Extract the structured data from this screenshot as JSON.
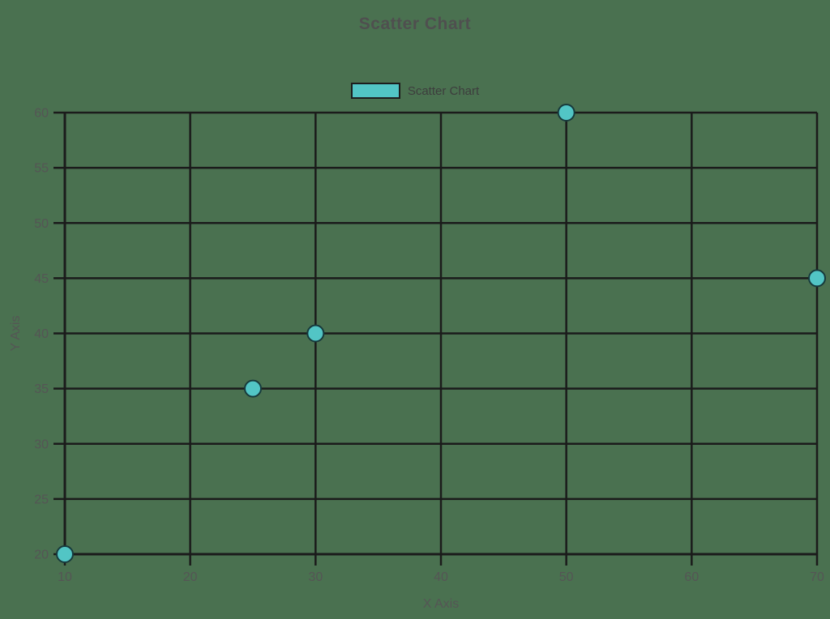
{
  "page": {
    "background_color": "#4A7150"
  },
  "chart_data": {
    "type": "scatter",
    "title": "Scatter Chart",
    "xlabel": "X Axis",
    "ylabel": "Y Axis",
    "xlim": [
      10,
      70
    ],
    "ylim": [
      20,
      60
    ],
    "x_ticks": [
      "10",
      "20",
      "30",
      "40",
      "50",
      "60",
      "70"
    ],
    "y_ticks": [
      "20",
      "25",
      "30",
      "35",
      "40",
      "45",
      "50",
      "55",
      "60"
    ],
    "grid": true,
    "legend_position": "top-center",
    "legend": [
      {
        "label": "Scatter Chart",
        "color": "#52C5C5"
      }
    ],
    "series": [
      {
        "name": "Scatter Chart",
        "points": [
          {
            "x": 10,
            "y": 20
          },
          {
            "x": 25,
            "y": 35
          },
          {
            "x": 30,
            "y": 40
          },
          {
            "x": 50,
            "y": 60
          },
          {
            "x": 70,
            "y": 45
          }
        ]
      }
    ],
    "colors": {
      "point_fill": "#52C5C5",
      "point_stroke": "#173A3C",
      "grid_line": "#1b1b1b",
      "axis_line": "#1b1b1b",
      "tick_text": "#555555",
      "axis_label_text": "#555555",
      "title_text": "#4f4f4f",
      "legend_text": "#3d3d3d"
    }
  }
}
